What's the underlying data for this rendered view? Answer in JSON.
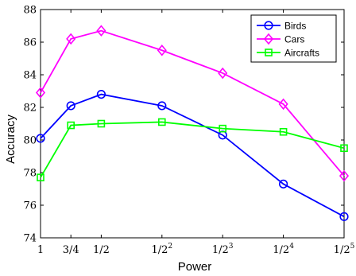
{
  "chart_data": {
    "type": "line",
    "title": "",
    "xlabel": "Power",
    "ylabel": "Accuracy",
    "x_tick_labels": [
      {
        "base": "1",
        "exp": ""
      },
      {
        "base": "3/4",
        "exp": ""
      },
      {
        "base": "1/2",
        "exp": ""
      },
      {
        "base": "1/2",
        "exp": "2"
      },
      {
        "base": "1/2",
        "exp": "3"
      },
      {
        "base": "1/2",
        "exp": "4"
      },
      {
        "base": "1/2",
        "exp": "5"
      }
    ],
    "x": [
      0,
      1,
      2,
      4,
      6,
      8,
      10
    ],
    "ylim": [
      74,
      88
    ],
    "yticks": [
      74,
      76,
      78,
      80,
      82,
      84,
      86,
      88
    ],
    "grid": false,
    "legend_position": "top-right",
    "series": [
      {
        "name": "Birds",
        "color": "#0000ff",
        "marker": "circle",
        "values": [
          80.1,
          82.1,
          82.8,
          82.1,
          80.3,
          77.3,
          75.3
        ]
      },
      {
        "name": "Cars",
        "color": "#ff00ff",
        "marker": "diamond",
        "values": [
          82.9,
          86.2,
          86.7,
          85.5,
          84.1,
          82.2,
          77.8
        ]
      },
      {
        "name": "Aircrafts",
        "color": "#00ff00",
        "marker": "square",
        "values": [
          77.7,
          80.9,
          81.0,
          81.1,
          80.7,
          80.5,
          79.5
        ]
      }
    ]
  }
}
